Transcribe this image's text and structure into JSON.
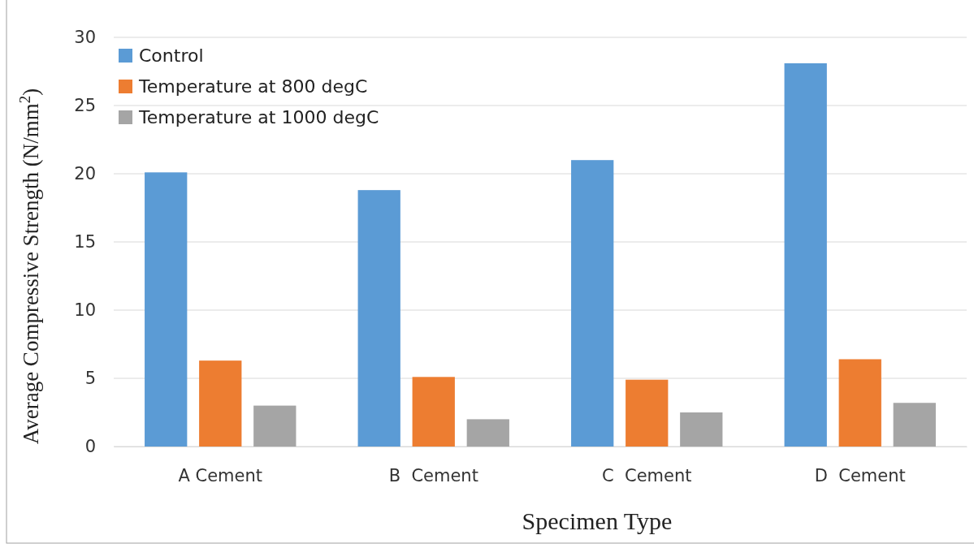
{
  "chart_data": {
    "type": "bar",
    "xlabel": "Specimen Type",
    "ylabel": "Average Compressive Strength (N/mm$^{2}$)",
    "categories": [
      "A Cement",
      "B  Cement",
      "C  Cement",
      "D  Cement"
    ],
    "series": [
      {
        "name": "Control",
        "color": "#5b9bd5",
        "values": [
          20.1,
          18.8,
          21.0,
          28.1
        ]
      },
      {
        "name": "Temperature at 800 degC",
        "color": "#ed7d31",
        "values": [
          6.3,
          5.1,
          4.9,
          6.4
        ]
      },
      {
        "name": "Temperature at 1000 degC",
        "color": "#a5a5a5",
        "values": [
          3.0,
          2.0,
          2.5,
          3.2
        ]
      }
    ],
    "ylim": [
      0,
      30
    ],
    "yticks": [
      0,
      5,
      10,
      15,
      20,
      25,
      30
    ],
    "grid": "y",
    "legend": "top left"
  }
}
